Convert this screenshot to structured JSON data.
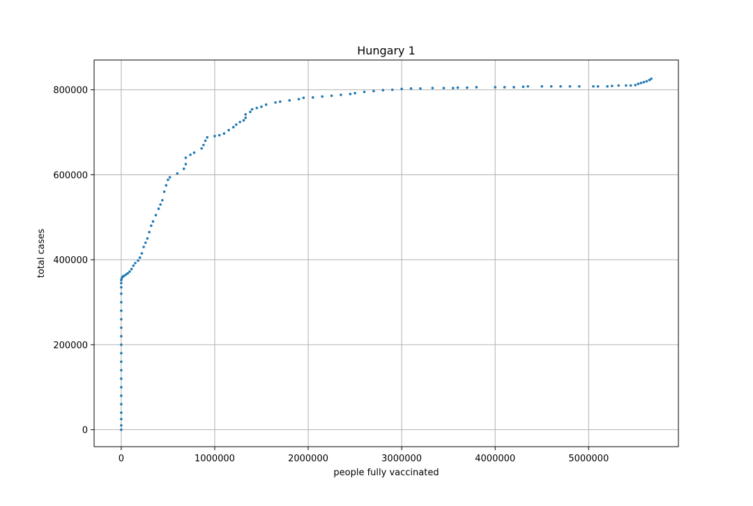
{
  "chart_data": {
    "type": "scatter",
    "title": "Hungary 1",
    "xlabel": "people fully vaccinated",
    "ylabel": "total cases",
    "xlim": [
      -290000,
      5960000
    ],
    "ylim": [
      -40000,
      870000
    ],
    "xticks": [
      0,
      1000000,
      2000000,
      3000000,
      4000000,
      5000000
    ],
    "yticks": [
      0,
      200000,
      400000,
      600000,
      800000
    ],
    "xtick_labels": [
      "0",
      "1000000",
      "2000000",
      "3000000",
      "4000000",
      "5000000"
    ],
    "ytick_labels": [
      "0",
      "200000",
      "400000",
      "600000",
      "800000"
    ],
    "grid": true,
    "marker_color": "#1f77b4",
    "series": [
      {
        "points": [
          [
            0,
            0
          ],
          [
            0,
            10000
          ],
          [
            0,
            25000
          ],
          [
            0,
            40000
          ],
          [
            0,
            60000
          ],
          [
            0,
            80000
          ],
          [
            0,
            100000
          ],
          [
            0,
            120000
          ],
          [
            0,
            140000
          ],
          [
            0,
            160000
          ],
          [
            0,
            180000
          ],
          [
            0,
            200000
          ],
          [
            0,
            220000
          ],
          [
            0,
            240000
          ],
          [
            0,
            260000
          ],
          [
            0,
            280000
          ],
          [
            0,
            300000
          ],
          [
            0,
            320000
          ],
          [
            0,
            335000
          ],
          [
            0,
            345000
          ],
          [
            0,
            352000
          ],
          [
            5000,
            356000
          ],
          [
            15000,
            360000
          ],
          [
            30000,
            362000
          ],
          [
            50000,
            365000
          ],
          [
            70000,
            368000
          ],
          [
            90000,
            372000
          ],
          [
            110000,
            378000
          ],
          [
            130000,
            386000
          ],
          [
            150000,
            392000
          ],
          [
            180000,
            398000
          ],
          [
            200000,
            405000
          ],
          [
            220000,
            415000
          ],
          [
            240000,
            430000
          ],
          [
            260000,
            440000
          ],
          [
            280000,
            450000
          ],
          [
            300000,
            465000
          ],
          [
            320000,
            480000
          ],
          [
            340000,
            490000
          ],
          [
            370000,
            505000
          ],
          [
            400000,
            520000
          ],
          [
            420000,
            530000
          ],
          [
            440000,
            540000
          ],
          [
            460000,
            560000
          ],
          [
            480000,
            575000
          ],
          [
            500000,
            588000
          ],
          [
            520000,
            594000
          ],
          [
            600000,
            603000
          ],
          [
            670000,
            614000
          ],
          [
            690000,
            625000
          ],
          [
            690000,
            640000
          ],
          [
            740000,
            647000
          ],
          [
            780000,
            652000
          ],
          [
            860000,
            662000
          ],
          [
            880000,
            670000
          ],
          [
            900000,
            680000
          ],
          [
            920000,
            688000
          ],
          [
            1000000,
            691000
          ],
          [
            1050000,
            693000
          ],
          [
            1100000,
            697000
          ],
          [
            1150000,
            705000
          ],
          [
            1200000,
            712000
          ],
          [
            1230000,
            718000
          ],
          [
            1270000,
            724000
          ],
          [
            1310000,
            728000
          ],
          [
            1330000,
            734000
          ],
          [
            1330000,
            742000
          ],
          [
            1380000,
            748000
          ],
          [
            1400000,
            754000
          ],
          [
            1450000,
            757000
          ],
          [
            1500000,
            760000
          ],
          [
            1550000,
            765000
          ],
          [
            1650000,
            770000
          ],
          [
            1700000,
            772000
          ],
          [
            1800000,
            775000
          ],
          [
            1900000,
            778000
          ],
          [
            1950000,
            781000
          ],
          [
            2050000,
            782000
          ],
          [
            2150000,
            784000
          ],
          [
            2250000,
            786000
          ],
          [
            2350000,
            788000
          ],
          [
            2450000,
            790000
          ],
          [
            2500000,
            792000
          ],
          [
            2600000,
            795000
          ],
          [
            2700000,
            797000
          ],
          [
            2800000,
            799000
          ],
          [
            2900000,
            800000
          ],
          [
            3000000,
            802000
          ],
          [
            3100000,
            803000
          ],
          [
            3200000,
            803000
          ],
          [
            3330000,
            804000
          ],
          [
            3450000,
            804000
          ],
          [
            3550000,
            804000
          ],
          [
            3600000,
            805000
          ],
          [
            3700000,
            805000
          ],
          [
            3800000,
            806000
          ],
          [
            4000000,
            806000
          ],
          [
            4100000,
            806000
          ],
          [
            4200000,
            806000
          ],
          [
            4300000,
            807000
          ],
          [
            4350000,
            808000
          ],
          [
            4500000,
            808000
          ],
          [
            4600000,
            808000
          ],
          [
            4700000,
            808000
          ],
          [
            4800000,
            808000
          ],
          [
            4900000,
            808000
          ],
          [
            5050000,
            808000
          ],
          [
            5100000,
            808000
          ],
          [
            5200000,
            808000
          ],
          [
            5250000,
            809000
          ],
          [
            5320000,
            810000
          ],
          [
            5400000,
            810000
          ],
          [
            5450000,
            810000
          ],
          [
            5500000,
            811000
          ],
          [
            5530000,
            814000
          ],
          [
            5560000,
            816000
          ],
          [
            5590000,
            818000
          ],
          [
            5620000,
            820000
          ],
          [
            5650000,
            823000
          ],
          [
            5670000,
            826000
          ]
        ]
      }
    ]
  }
}
